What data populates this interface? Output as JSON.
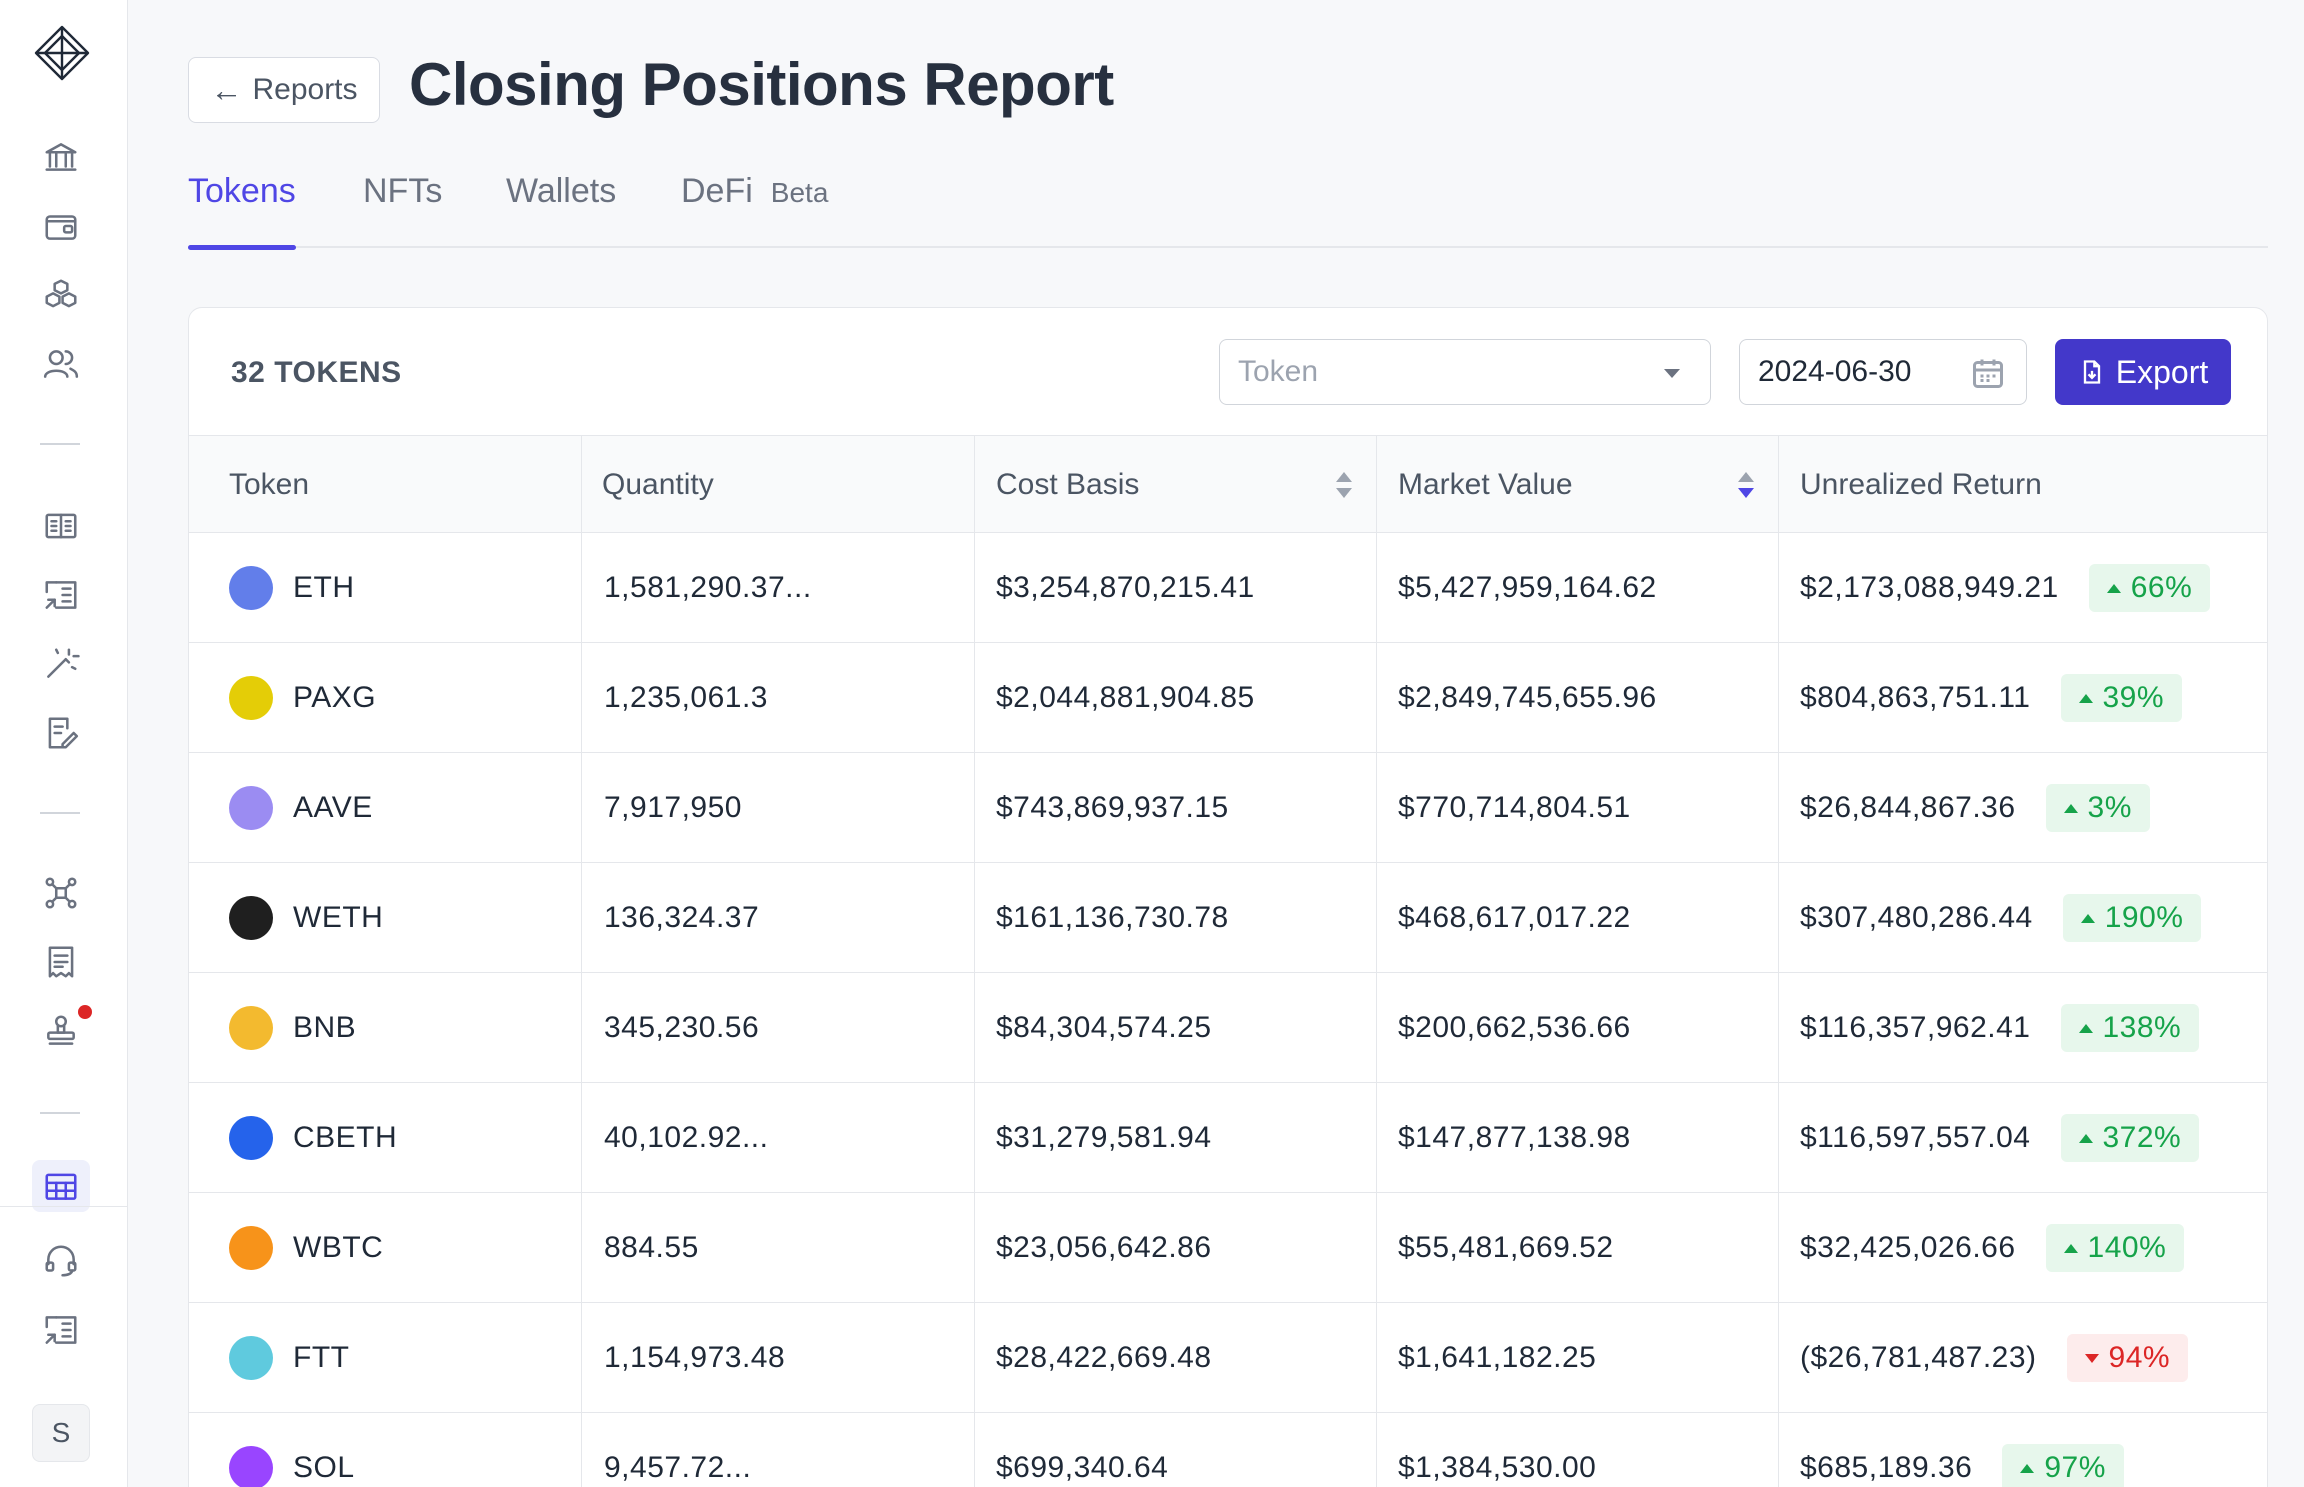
{
  "header": {
    "back_label": "Reports",
    "title": "Closing Positions Report"
  },
  "tabs": [
    {
      "label": "Tokens",
      "active": true
    },
    {
      "label": "NFTs",
      "active": false
    },
    {
      "label": "Wallets",
      "active": false
    },
    {
      "label": "DeFi",
      "active": false,
      "badge": "Beta"
    }
  ],
  "toolbar": {
    "count_label": "32 TOKENS",
    "token_placeholder": "Token",
    "date_value": "2024-06-30",
    "export_label": "Export"
  },
  "table": {
    "columns": [
      "Token",
      "Quantity",
      "Cost Basis",
      "Market Value",
      "Unrealized Return"
    ],
    "sort_column": "Market Value",
    "rows": [
      {
        "token": "ETH",
        "quantity": "1,581,290.37...",
        "cost_basis": "$3,254,870,215.41",
        "market_value": "$5,427,959,164.62",
        "unrealized": "$2,173,088,949.21",
        "pct": "66%",
        "dir": "up",
        "icon_color": "#627eea"
      },
      {
        "token": "PAXG",
        "quantity": "1,235,061.3",
        "cost_basis": "$2,044,881,904.85",
        "market_value": "$2,849,745,655.96",
        "unrealized": "$804,863,751.11",
        "pct": "39%",
        "dir": "up",
        "icon_color": "#e4cd07"
      },
      {
        "token": "AAVE",
        "quantity": "7,917,950",
        "cost_basis": "$743,869,937.15",
        "market_value": "$770,714,804.51",
        "unrealized": "$26,844,867.36",
        "pct": "3%",
        "dir": "up",
        "icon_color": "#9b8cf2"
      },
      {
        "token": "WETH",
        "quantity": "136,324.37",
        "cost_basis": "$161,136,730.78",
        "market_value": "$468,617,017.22",
        "unrealized": "$307,480,286.44",
        "pct": "190%",
        "dir": "up",
        "icon_color": "#1f1f1f"
      },
      {
        "token": "BNB",
        "quantity": "345,230.56",
        "cost_basis": "$84,304,574.25",
        "market_value": "$200,662,536.66",
        "unrealized": "$116,357,962.41",
        "pct": "138%",
        "dir": "up",
        "icon_color": "#f3ba2f"
      },
      {
        "token": "CBETH",
        "quantity": "40,102.92...",
        "cost_basis": "$31,279,581.94",
        "market_value": "$147,877,138.98",
        "unrealized": "$116,597,557.04",
        "pct": "372%",
        "dir": "up",
        "icon_color": "#2563eb"
      },
      {
        "token": "WBTC",
        "quantity": "884.55",
        "cost_basis": "$23,056,642.86",
        "market_value": "$55,481,669.52",
        "unrealized": "$32,425,026.66",
        "pct": "140%",
        "dir": "up",
        "icon_color": "#f7931a"
      },
      {
        "token": "FTT",
        "quantity": "1,154,973.48",
        "cost_basis": "$28,422,669.48",
        "market_value": "$1,641,182.25",
        "unrealized": "($26,781,487.23)",
        "pct": "94%",
        "dir": "down",
        "icon_color": "#5fcade"
      },
      {
        "token": "SOL",
        "quantity": "9,457.72...",
        "cost_basis": "$699,340.64",
        "market_value": "$1,384,530.00",
        "unrealized": "$685,189.36",
        "pct": "97%",
        "dir": "up",
        "icon_color": "#9945ff"
      }
    ]
  },
  "sidebar": {
    "icons": [
      "bank-icon",
      "wallet-icon",
      "cubes-icon",
      "users-icon",
      "ledger-icon",
      "report-icon",
      "magic-wand-icon",
      "document-edit-icon",
      "network-icon",
      "receipt-icon",
      "stamp-icon",
      "table-icon"
    ],
    "bottom_icons": [
      "support-icon",
      "report-icon"
    ],
    "avatar_initial": "S"
  },
  "colors": {
    "accent": "#4f46e5",
    "export_button": "#4338ca",
    "positive": "#16a34a",
    "negative": "#dc2626"
  }
}
